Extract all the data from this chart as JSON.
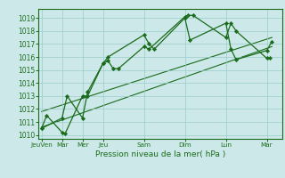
{
  "background_color": "#cce8e8",
  "grid_color": "#99cccc",
  "line_color": "#1a6b1a",
  "marker_color": "#1a6b1a",
  "xlabel": "Pression niveau de la mer( hPa )",
  "yticks": [
    1010,
    1011,
    1012,
    1013,
    1014,
    1015,
    1016,
    1017,
    1018,
    1019
  ],
  "ylim": [
    1009.7,
    1019.7
  ],
  "xtick_labels": [
    "JeuVen",
    "Mar",
    "Mer",
    "Jeu",
    "Sam",
    "Dim",
    "Lun",
    "Mar"
  ],
  "xtick_positions": [
    0,
    2,
    4,
    6,
    10,
    14,
    18,
    22
  ],
  "xlim": [
    -0.3,
    23.5
  ],
  "series1_x": [
    0,
    0.5,
    2,
    2.3,
    4,
    4.5,
    6,
    6.5,
    7,
    7.5,
    10,
    10.5,
    14,
    14.3,
    14.8,
    18,
    18.5,
    19,
    22,
    22.3
  ],
  "series1_y": [
    1010.5,
    1011.5,
    1010.2,
    1010.1,
    1013.0,
    1013.0,
    1015.5,
    1015.7,
    1015.1,
    1015.1,
    1016.8,
    1016.6,
    1019.1,
    1019.2,
    1019.2,
    1017.5,
    1018.6,
    1018.0,
    1015.9,
    1015.9
  ],
  "series2_x": [
    0,
    2,
    2.5,
    4,
    4.5,
    6,
    6.5,
    10,
    10.5,
    11,
    14,
    14.5,
    18,
    18.5,
    19,
    22,
    22.5
  ],
  "series2_y": [
    1010.5,
    1011.3,
    1013.0,
    1011.3,
    1013.3,
    1015.5,
    1016.0,
    1017.7,
    1017.0,
    1016.6,
    1019.0,
    1017.3,
    1018.6,
    1016.6,
    1015.8,
    1016.5,
    1017.2
  ],
  "trend1_x": [
    0,
    22.5
  ],
  "trend1_y": [
    1010.6,
    1016.8
  ],
  "trend2_x": [
    0,
    22.5
  ],
  "trend2_y": [
    1011.8,
    1017.5
  ]
}
